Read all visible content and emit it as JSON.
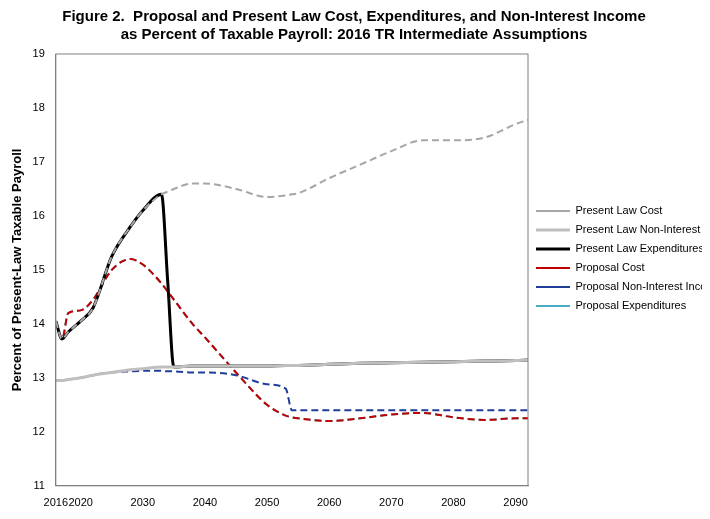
{
  "chart_data": {
    "type": "line",
    "title": [
      "Figure 2.  Proposal and Present Law Cost, Expenditures, and Non-Interest Income",
      "as Percent of Taxable Payroll: 2016 TR Intermediate Assumptions"
    ],
    "y_label": "Percent of Present-Law Taxable Payroll",
    "x": [
      2016,
      2017,
      2018,
      2020,
      2022,
      2025,
      2028,
      2030,
      2033,
      2034,
      2035,
      2038,
      2040,
      2045,
      2050,
      2053,
      2054,
      2055,
      2060,
      2065,
      2070,
      2075,
      2080,
      2085,
      2090,
      2092
    ],
    "xlim": [
      2016,
      2092
    ],
    "xticks": [
      2016,
      2020,
      2030,
      2040,
      2050,
      2060,
      2070,
      2080,
      2090
    ],
    "ylim": [
      11,
      19
    ],
    "yticks": [
      11,
      12,
      13,
      14,
      15,
      16,
      17,
      18,
      19
    ],
    "grid": false,
    "legend": "right",
    "series": [
      {
        "name": "Present Law Cost",
        "color": "#a6a6a6",
        "line_style": "dashed",
        "values": [
          14.05,
          13.72,
          13.85,
          14.05,
          14.3,
          15.25,
          15.8,
          16.1,
          16.4,
          16.45,
          16.5,
          16.6,
          16.6,
          16.5,
          16.35,
          16.38,
          16.4,
          16.42,
          16.7,
          16.95,
          17.2,
          17.4,
          17.4,
          17.45,
          17.7,
          17.78
        ]
      },
      {
        "name": "Present Law Non-Interest Income",
        "color": "#bfbfbf",
        "line_style": "solid",
        "values": [
          12.95,
          12.95,
          12.97,
          13.0,
          13.05,
          13.1,
          13.15,
          13.17,
          13.2,
          13.2,
          13.2,
          13.22,
          13.22,
          13.22,
          13.22,
          13.23,
          13.23,
          13.23,
          13.25,
          13.27,
          13.28,
          13.29,
          13.3,
          13.31,
          13.32,
          13.33
        ]
      },
      {
        "name": "Present Law Expenditures",
        "color": "#000000",
        "line_style": "solid",
        "values": [
          14.05,
          13.72,
          13.85,
          14.05,
          14.3,
          15.25,
          15.8,
          16.1,
          16.4,
          14.8,
          13.2,
          13.22,
          13.22,
          13.22,
          13.22,
          13.23,
          13.23,
          13.23,
          13.25,
          13.27,
          13.28,
          13.29,
          13.3,
          13.31,
          13.32,
          13.33
        ]
      },
      {
        "name": "Proposal Cost",
        "color": "#c00000",
        "line_style": "dashed",
        "values": [
          14.05,
          13.72,
          14.2,
          14.25,
          14.45,
          15.0,
          15.2,
          15.1,
          14.75,
          14.6,
          14.45,
          14.0,
          13.75,
          13.1,
          12.5,
          12.3,
          12.27,
          12.25,
          12.2,
          12.25,
          12.32,
          12.35,
          12.27,
          12.22,
          12.25,
          12.25
        ]
      },
      {
        "name": "Proposal Non-Interest Income",
        "color": "#1f3d99",
        "line_style": "dashed",
        "values": [
          12.95,
          12.95,
          12.97,
          13.0,
          13.05,
          13.1,
          13.12,
          13.13,
          13.13,
          13.12,
          13.12,
          13.1,
          13.1,
          13.05,
          12.88,
          12.8,
          12.4,
          12.4,
          12.4,
          12.4,
          12.4,
          12.4,
          12.4,
          12.4,
          12.4,
          12.4
        ]
      },
      {
        "name": "Proposal Expenditures",
        "color": "#4bacc6",
        "line_style": "dashed",
        "values": [
          14.05,
          13.72,
          14.2,
          14.25,
          14.45,
          15.0,
          15.2,
          15.1,
          14.75,
          14.6,
          14.45,
          14.0,
          13.75,
          13.1,
          12.5,
          12.3,
          12.27,
          12.25,
          12.2,
          12.25,
          12.32,
          12.35,
          12.27,
          12.22,
          12.25,
          12.25
        ]
      }
    ]
  }
}
